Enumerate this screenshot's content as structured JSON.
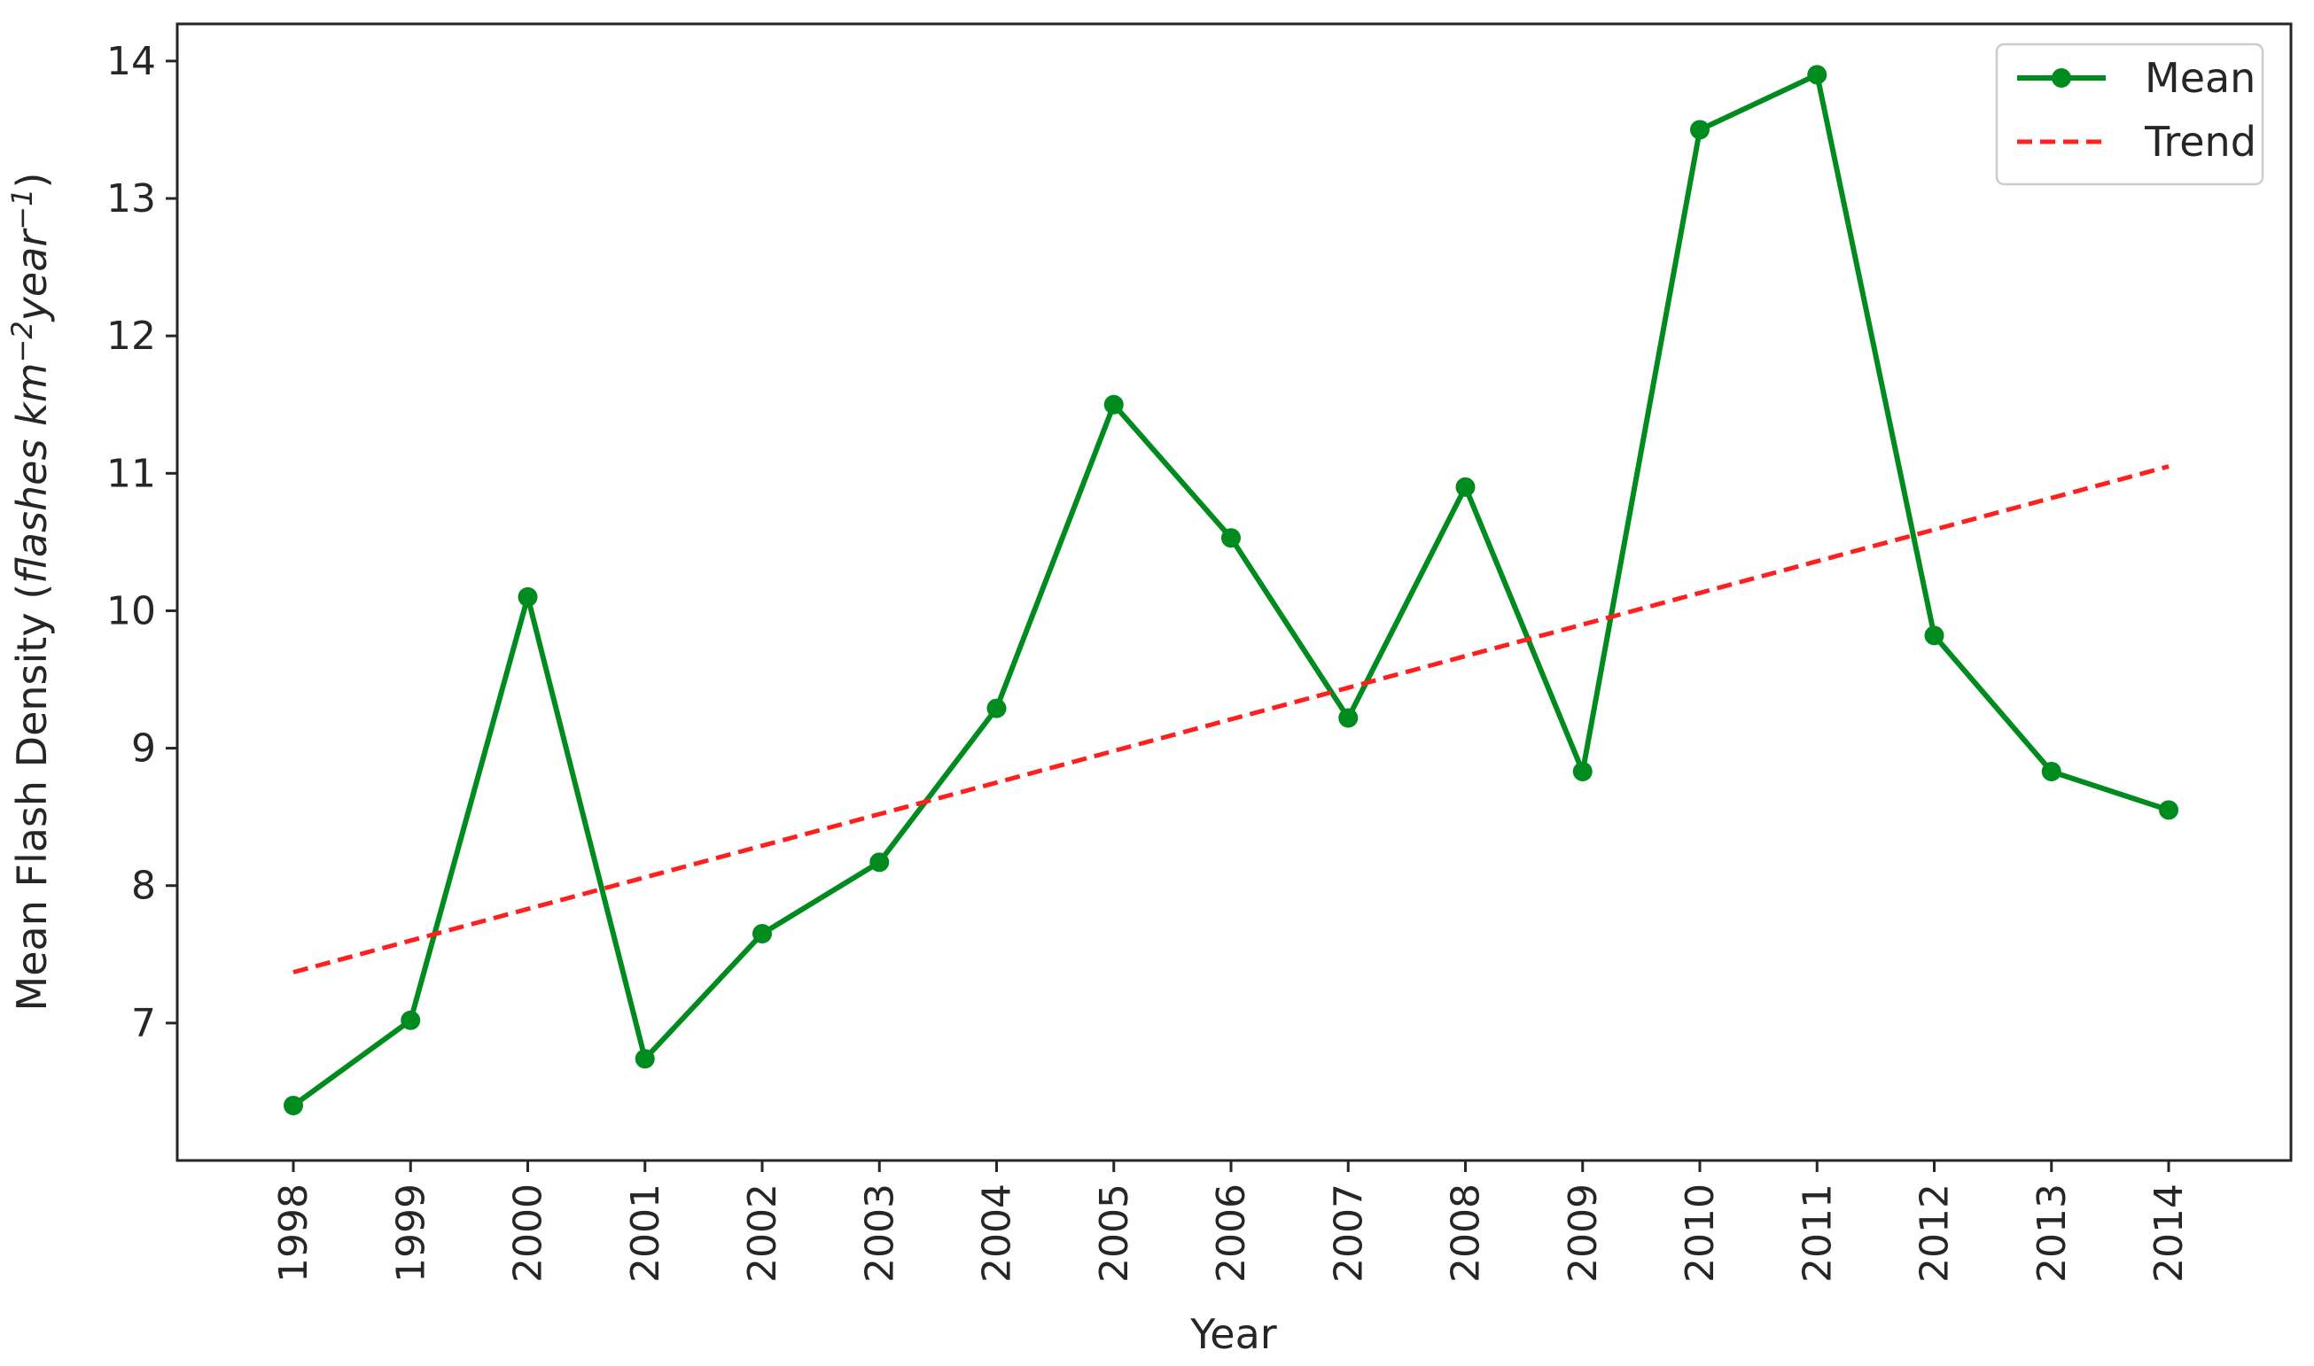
{
  "chart_data": {
    "type": "line",
    "x": [
      "1998",
      "1999",
      "2000",
      "2001",
      "2002",
      "2003",
      "2004",
      "2005",
      "2006",
      "2007",
      "2008",
      "2009",
      "2010",
      "2011",
      "2012",
      "2013",
      "2014"
    ],
    "series": [
      {
        "name": "Mean",
        "color": "#008b1f",
        "style": "solid-with-markers",
        "values": [
          6.4,
          7.02,
          10.1,
          6.74,
          7.65,
          8.17,
          9.29,
          11.5,
          10.53,
          9.22,
          10.9,
          8.83,
          13.5,
          13.9,
          9.82,
          8.83,
          8.55
        ]
      },
      {
        "name": "Trend",
        "color": "#ff1f1f",
        "style": "dashed",
        "values": [
          7.37,
          7.6,
          7.83,
          8.06,
          8.29,
          8.52,
          8.75,
          8.98,
          9.21,
          9.44,
          9.67,
          9.9,
          10.13,
          10.36,
          10.59,
          10.82,
          11.05
        ]
      }
    ],
    "xlabel": "Year",
    "ylabel": "Mean Flash Density (",
    "ylabel_italic": "flashes km",
    "ylabel_sup1": "−2",
    "ylabel_italic2": "year",
    "ylabel_sup2": "−1",
    "ylabel_close": ")",
    "yticks": [
      "7",
      "8",
      "9",
      "10",
      "11",
      "12",
      "13",
      "14"
    ],
    "ylim": [
      6.0,
      14.27
    ],
    "grid": false,
    "legend": "top-right"
  }
}
